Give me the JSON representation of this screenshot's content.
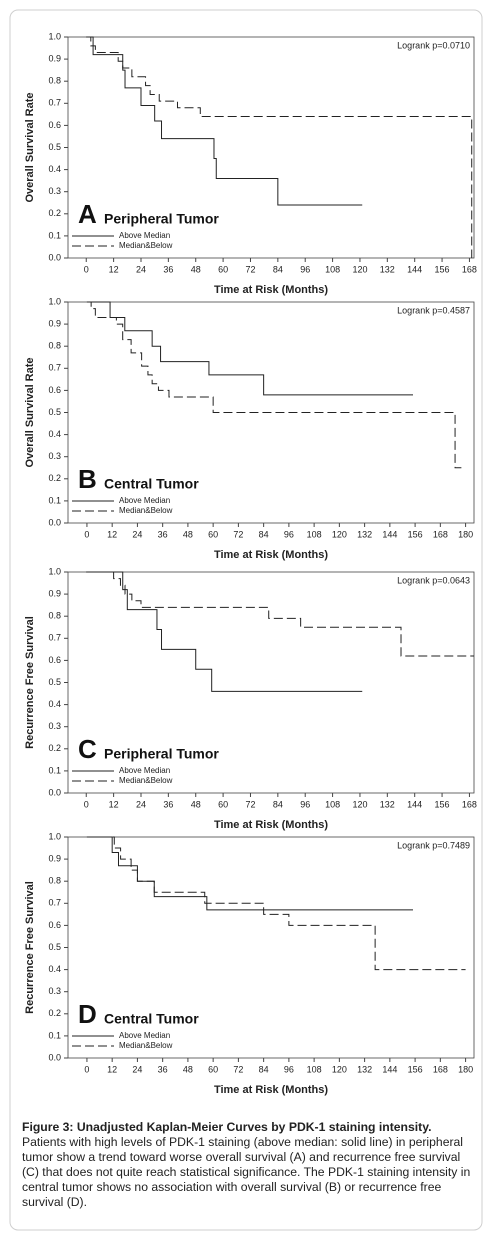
{
  "chart_data": [
    {
      "type": "step",
      "panel_letter": "A",
      "panel_title": "Peripheral Tumor",
      "annotation": "Logrank p=0.0710",
      "x_label": "Time at Risk (Months)",
      "y_label": "Overall Survival Rate",
      "xlim": [
        -8,
        170
      ],
      "ylim": [
        0,
        1
      ],
      "xticks": [
        0,
        12,
        24,
        36,
        48,
        60,
        72,
        84,
        96,
        108,
        120,
        132,
        144,
        156,
        168
      ],
      "yticks": [
        {
          "value": 0,
          "label": "0.0"
        },
        0.1,
        0.2,
        0.3,
        0.4,
        0.5,
        0.6,
        0.7,
        0.8,
        0.9,
        {
          "value": 1,
          "label": "1.0"
        }
      ],
      "legend": "lower left",
      "series": [
        {
          "name": "Above Median",
          "color": "#222222",
          "line_style": "solid",
          "x": [
            0,
            3,
            16,
            17,
            24,
            30,
            33,
            56,
            57,
            84,
            121
          ],
          "values": [
            1,
            0.92,
            0.85,
            0.77,
            0.69,
            0.62,
            0.54,
            0.45,
            0.36,
            0.24,
            0.24
          ]
        },
        {
          "name": "Median&Below",
          "color": "#222222",
          "line_style": "dashed",
          "x": [
            0,
            2,
            4,
            14,
            16,
            20,
            26,
            28,
            32,
            40,
            50,
            169
          ],
          "values": [
            1,
            0.96,
            0.93,
            0.89,
            0.86,
            0.82,
            0.78,
            0.74,
            0.71,
            0.68,
            0.64,
            0
          ]
        }
      ]
    },
    {
      "type": "step",
      "panel_letter": "B",
      "panel_title": "Central Tumor",
      "annotation": "Logrank p=0.4587",
      "x_label": "Time at Risk (Months)",
      "y_label": "Overall Survival Rate",
      "xlim": [
        -9,
        184
      ],
      "ylim": [
        0,
        1
      ],
      "xticks": [
        0,
        12,
        24,
        36,
        48,
        60,
        72,
        84,
        96,
        108,
        120,
        132,
        144,
        156,
        168,
        180
      ],
      "yticks": [
        {
          "value": 0,
          "label": "0.0"
        },
        0.1,
        0.2,
        0.3,
        0.4,
        0.5,
        0.6,
        0.7,
        0.8,
        0.9,
        {
          "value": 1,
          "label": "1.0"
        }
      ],
      "legend": "lower left",
      "series": [
        {
          "name": "Above Median",
          "color": "#222222",
          "line_style": "solid",
          "x": [
            0,
            11,
            18,
            31,
            35,
            58,
            84,
            155
          ],
          "values": [
            1,
            0.93,
            0.87,
            0.8,
            0.73,
            0.67,
            0.58,
            0.58
          ]
        },
        {
          "name": "Median&Below",
          "color": "#222222",
          "line_style": "dashed",
          "x": [
            0,
            2,
            4,
            14,
            17,
            21,
            26,
            29,
            31,
            34,
            39,
            60,
            175,
            178
          ],
          "values": [
            1,
            0.97,
            0.93,
            0.9,
            0.83,
            0.77,
            0.71,
            0.67,
            0.63,
            0.6,
            0.57,
            0.5,
            0.25,
            0.25
          ]
        }
      ]
    },
    {
      "type": "step",
      "panel_letter": "C",
      "panel_title": "Peripheral Tumor",
      "annotation": "Logrank p=0.0643",
      "x_label": "Time at Risk (Months)",
      "y_label": "Recurrence Free Survival",
      "xlim": [
        -8,
        170
      ],
      "ylim": [
        0,
        1
      ],
      "xticks": [
        0,
        12,
        24,
        36,
        48,
        60,
        72,
        84,
        96,
        108,
        120,
        132,
        144,
        156,
        168
      ],
      "yticks": [
        {
          "value": 0,
          "label": "0.0"
        },
        0.1,
        0.2,
        0.3,
        0.4,
        0.5,
        0.6,
        0.7,
        0.8,
        0.9,
        {
          "value": 1,
          "label": "1.0"
        }
      ],
      "legend": "lower left",
      "series": [
        {
          "name": "Above Median",
          "color": "#222222",
          "line_style": "solid",
          "x": [
            0,
            16,
            18,
            31,
            33,
            48,
            55,
            121
          ],
          "values": [
            1,
            0.92,
            0.83,
            0.74,
            0.65,
            0.56,
            0.46,
            0.46
          ]
        },
        {
          "name": "Median&Below",
          "color": "#222222",
          "line_style": "dashed",
          "x": [
            0,
            12,
            15,
            17,
            20,
            24,
            80,
            94,
            138,
            170
          ],
          "values": [
            1,
            0.97,
            0.94,
            0.9,
            0.87,
            0.84,
            0.79,
            0.75,
            0.62,
            0.62
          ]
        }
      ]
    },
    {
      "type": "step",
      "panel_letter": "D",
      "panel_title": "Central Tumor",
      "annotation": "Logrank p=0.7489",
      "x_label": "Time at Risk (Months)",
      "y_label": "Recurrence Free Survival",
      "xlim": [
        -9,
        184
      ],
      "ylim": [
        0,
        1
      ],
      "xticks": [
        0,
        12,
        24,
        36,
        48,
        60,
        72,
        84,
        96,
        108,
        120,
        132,
        144,
        156,
        168,
        180
      ],
      "yticks": [
        {
          "value": 0,
          "label": "0.0"
        },
        0.1,
        0.2,
        0.3,
        0.4,
        0.5,
        0.6,
        0.7,
        0.8,
        0.9,
        {
          "value": 1,
          "label": "1.0"
        }
      ],
      "legend": "lower left",
      "series": [
        {
          "name": "Above Median",
          "color": "#222222",
          "line_style": "solid",
          "x": [
            0,
            12,
            15,
            24,
            32,
            57,
            155
          ],
          "values": [
            1,
            0.93,
            0.87,
            0.8,
            0.73,
            0.67,
            0.67
          ]
        },
        {
          "name": "Median&Below",
          "color": "#222222",
          "line_style": "dashed",
          "x": [
            0,
            13,
            16,
            21,
            24,
            32,
            56,
            84,
            96,
            137,
            180
          ],
          "values": [
            1,
            0.95,
            0.9,
            0.85,
            0.8,
            0.75,
            0.7,
            0.65,
            0.6,
            0.4,
            0.4
          ]
        }
      ]
    }
  ],
  "caption": {
    "title": "Figure 3: Unadjusted Kaplan-Meier Curves by PDK-1 staining intensity.",
    "text": "Patients with high levels of PDK-1 staining (above median: solid line) in peripheral tumor show a trend toward worse overall survival (A) and recurrence free survival (C) that does not quite reach statistical significance. The PDK-1 staining intensity in central tumor shows no association with overall survival (B) or recurrence free survival (D)."
  }
}
